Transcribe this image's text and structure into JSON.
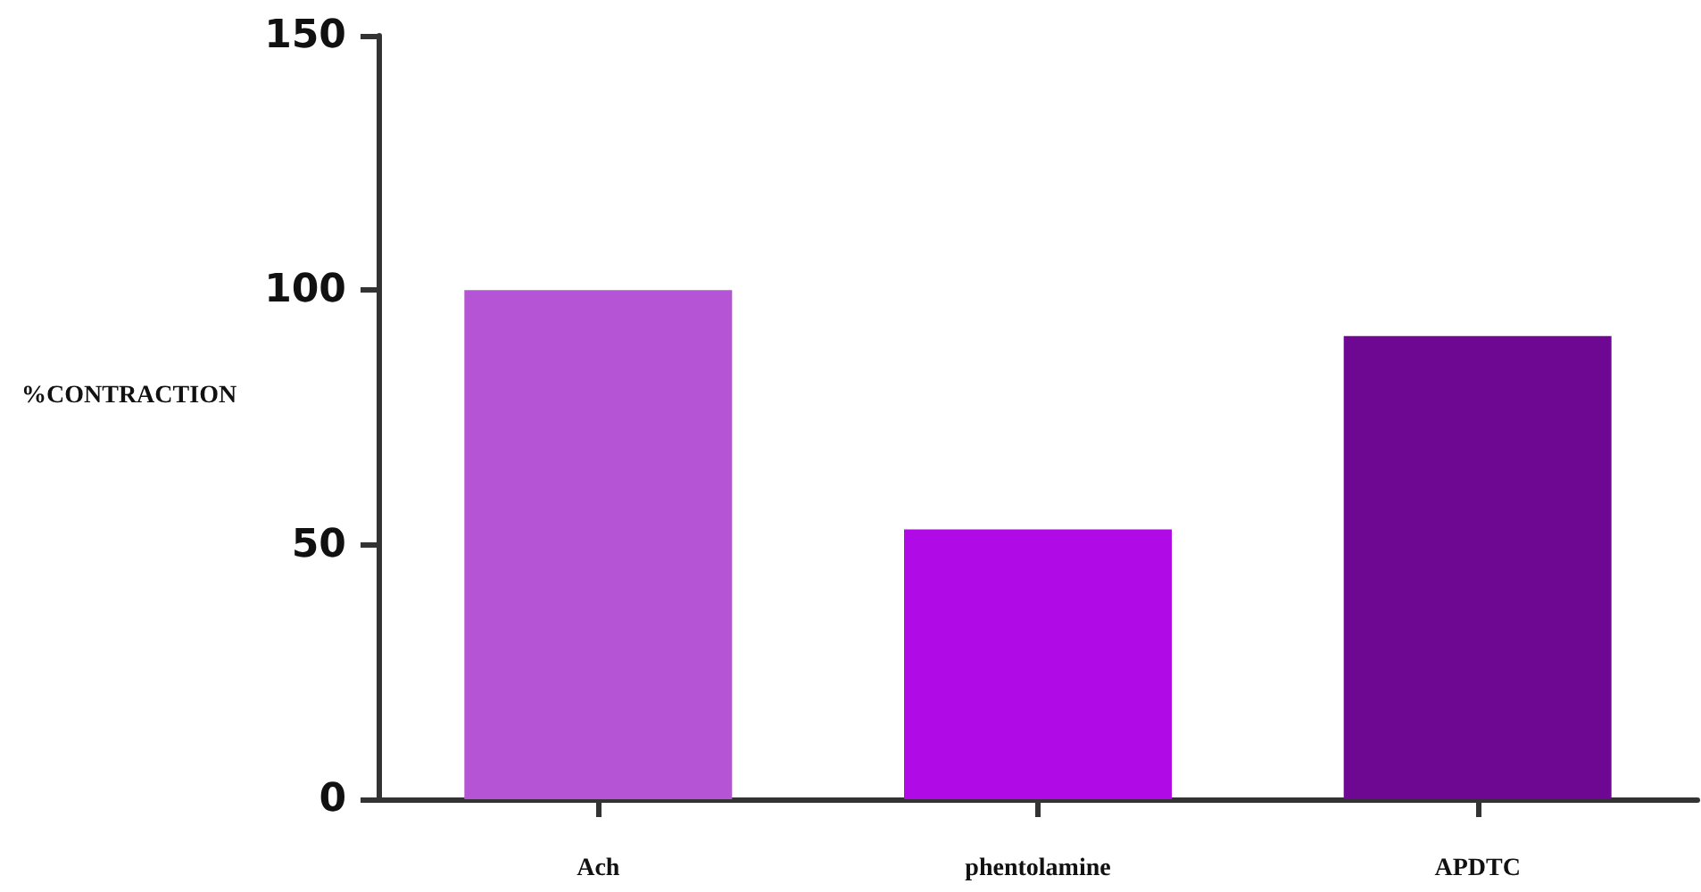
{
  "chart_data": {
    "type": "bar",
    "ylabel": "%CONTRACTION",
    "categories": [
      "Ach",
      "phentolamine",
      "APDTC"
    ],
    "values": [
      100,
      53,
      91
    ],
    "colors": [
      "#b555d6",
      "#b00ae6",
      "#6e0791"
    ],
    "ylim": [
      0,
      150
    ],
    "yticks": [
      0,
      50,
      100,
      150
    ],
    "grid": false
  }
}
